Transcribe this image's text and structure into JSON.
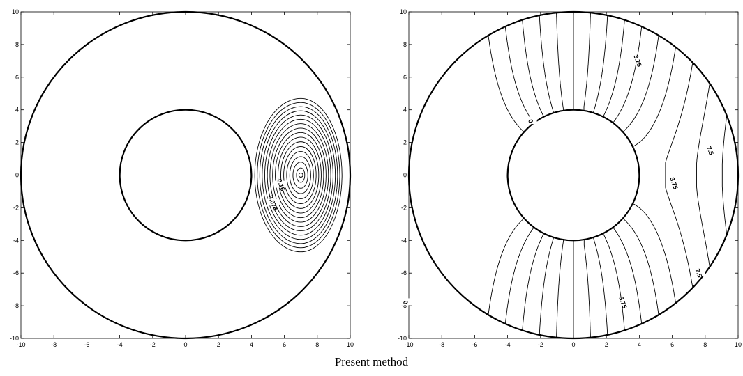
{
  "caption": "Present method",
  "chart_data": [
    {
      "type": "contour",
      "title": "",
      "xlabel": "",
      "ylabel": "",
      "xlim": [
        -10,
        10
      ],
      "ylim": [
        -10,
        10
      ],
      "x_ticks": [
        "-10",
        "-8",
        "-6",
        "-4",
        "-2",
        "0",
        "2",
        "4",
        "6",
        "8",
        "10"
      ],
      "y_ticks": [
        "-10",
        "-8",
        "-6",
        "-4",
        "-2",
        "0",
        "2",
        "4",
        "6",
        "8",
        "10"
      ],
      "grid": false,
      "boundaries": [
        {
          "name": "outer-circle",
          "center": [
            0,
            0
          ],
          "radius": 10
        },
        {
          "name": "inner-circle",
          "center": [
            0,
            0
          ],
          "radius": 4
        }
      ],
      "field_peak": {
        "center": [
          7,
          0
        ],
        "x_extent": [
          4.2,
          9.5
        ],
        "y_extent": [
          -4.7,
          4.7
        ]
      },
      "contour_count": 16,
      "contour_labels": [
        {
          "text": "0.16",
          "x": 5.8,
          "y": -0.6
        },
        {
          "text": "0.076",
          "x": 5.3,
          "y": -1.7
        }
      ]
    },
    {
      "type": "contour",
      "title": "",
      "xlabel": "",
      "ylabel": "",
      "xlim": [
        -10,
        10
      ],
      "ylim": [
        -10,
        10
      ],
      "x_ticks": [
        "-10",
        "-8",
        "-6",
        "-4",
        "-2",
        "0",
        "2",
        "4",
        "6",
        "8",
        "10"
      ],
      "y_ticks": [
        "-10",
        "-8",
        "-6",
        "-4",
        "-2",
        "0",
        "2",
        "4",
        "6",
        "8",
        "10"
      ],
      "grid": false,
      "boundaries": [
        {
          "name": "outer-circle",
          "center": [
            0,
            0
          ],
          "radius": 10
        },
        {
          "name": "inner-circle",
          "center": [
            0,
            0
          ],
          "radius": 4
        }
      ],
      "contour_levels": [
        "0",
        "3.75",
        "7.5"
      ],
      "contour_labels": [
        {
          "text": "0",
          "x": -2.6,
          "y": 3.3
        },
        {
          "text": "0",
          "x": -10.2,
          "y": -7.8
        },
        {
          "text": "3.75",
          "x": 3.9,
          "y": 7.0
        },
        {
          "text": "3.75",
          "x": 6.1,
          "y": -0.5
        },
        {
          "text": "3.75",
          "x": 3.0,
          "y": -7.8
        },
        {
          "text": "7.5",
          "x": 8.3,
          "y": 1.5
        },
        {
          "text": "7.5",
          "x": 7.6,
          "y": -6.0
        }
      ]
    }
  ]
}
